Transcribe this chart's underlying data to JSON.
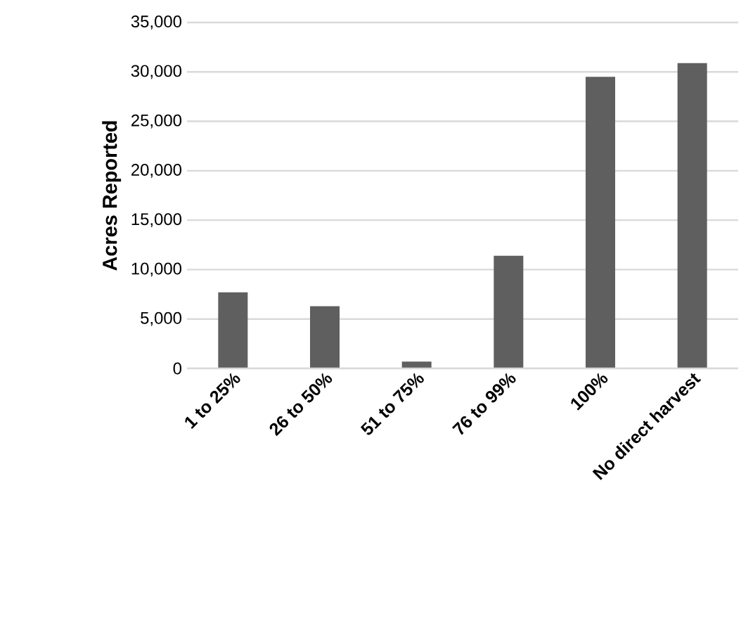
{
  "chart_data": {
    "type": "bar",
    "ylabel": "Acres Reported",
    "categories": [
      "1 to 25%",
      "26 to 50%",
      "51 to 75%",
      "76 to 99%",
      "100%",
      "No direct harvest"
    ],
    "values": [
      7700,
      6300,
      700,
      11400,
      29500,
      30900
    ],
    "color": "#5f5f5f",
    "ylim": [
      0,
      35000
    ],
    "yticks": [
      {
        "value": 0,
        "label": "0"
      },
      {
        "value": 5000,
        "label": "5,000"
      },
      {
        "value": 10000,
        "label": "10,000"
      },
      {
        "value": 15000,
        "label": "15,000"
      },
      {
        "value": 20000,
        "label": "20,000"
      },
      {
        "value": 25000,
        "label": "25,000"
      },
      {
        "value": 30000,
        "label": "30,000"
      },
      {
        "value": 35000,
        "label": "35,000"
      }
    ],
    "grid": "y"
  }
}
